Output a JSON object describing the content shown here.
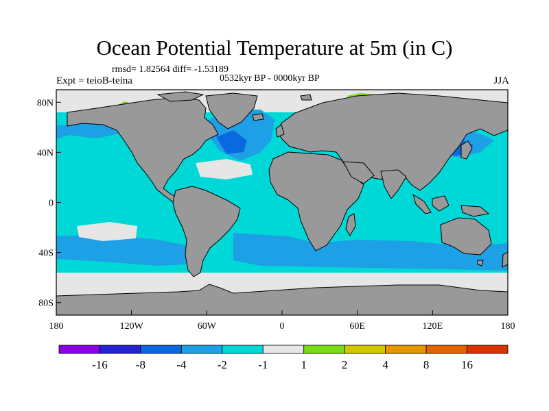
{
  "title": "Ocean Potential Temperature at 5m (in C)",
  "stats": "rmsd= 1.82564 diff= -1.53189",
  "experiment": "Expt = teioB-teina",
  "period": "0532kyr BP - 0000kyr BP",
  "season": "JJA",
  "map": {
    "lon_range": [
      -180,
      180
    ],
    "lat_range": [
      -90,
      90
    ],
    "x_ticks": [
      {
        "value": -180,
        "label": "180"
      },
      {
        "value": -120,
        "label": "120W"
      },
      {
        "value": -60,
        "label": "60W"
      },
      {
        "value": 0,
        "label": "0"
      },
      {
        "value": 60,
        "label": "60E"
      },
      {
        "value": 120,
        "label": "120E"
      },
      {
        "value": 180,
        "label": "180"
      }
    ],
    "y_ticks": [
      {
        "value": 80,
        "label": "80N"
      },
      {
        "value": 40,
        "label": "40N"
      },
      {
        "value": 0,
        "label": "0"
      },
      {
        "value": -40,
        "label": "40S"
      },
      {
        "value": -80,
        "label": "80S"
      }
    ],
    "land_color": "#999999",
    "ocean_base_color": "#00d7d7"
  },
  "colorbar": {
    "colors": [
      "#8c00e6",
      "#2323d2",
      "#0a69e0",
      "#1ea0e6",
      "#00d7d7",
      "#e6e6e6",
      "#78dc14",
      "#d2c800",
      "#e69600",
      "#e06400",
      "#dc3200"
    ],
    "labels": [
      "-16",
      "-8",
      "-4",
      "-2",
      "-1",
      "1",
      "2",
      "4",
      "8",
      "16"
    ]
  }
}
